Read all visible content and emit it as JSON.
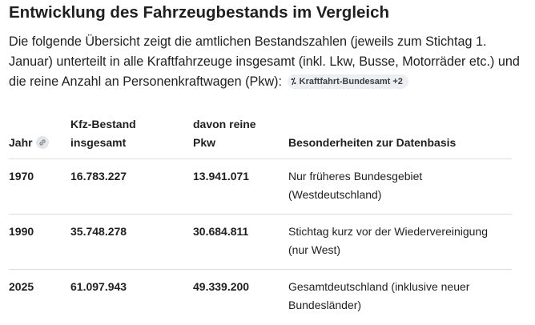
{
  "heading": "Entwicklung des Fahrzeugbestands im Vergleich",
  "intro": {
    "text": "Die folgende Übersicht zeigt die amtlichen Bestandszahlen (jeweils zum Stichtag 1. Januar) unterteilt in alle Kraftfahrzeuge insgesamt (inkl. Lkw, Busse, Motorräder etc.) und die reine Anzahl an Personenkraftwagen (Pkw):",
    "source_chip": {
      "icon": "kraftfahrt-bundesamt-logo-icon",
      "label": "Kraftfahrt-Bundesamt +2"
    }
  },
  "table": {
    "headers": {
      "year": "Jahr",
      "kfz_line1": "Kfz-Bestand",
      "kfz_line2": "insgesamt",
      "pkw_line1": "davon reine",
      "pkw_line2": "Pkw",
      "notes": "Besonderheiten zur Datenbasis"
    },
    "year_header_icon": "link-icon",
    "rows": [
      {
        "year": "1970",
        "kfz": "16.783.227",
        "pkw": "13.941.071",
        "note_line1": "Nur früheres Bundesgebiet",
        "note_line2": "(Westdeutschland)"
      },
      {
        "year": "1990",
        "kfz": "35.748.278",
        "pkw": "30.684.811",
        "note_line1": "Stichtag kurz vor der Wiedervereinigung",
        "note_line2": "(nur West)"
      },
      {
        "year": "2025",
        "kfz": "61.097.943",
        "pkw": "49.339.200",
        "note_line1": "Gesamtdeutschland (inklusive neuer",
        "note_line2": "Bundesländer)"
      }
    ]
  }
}
